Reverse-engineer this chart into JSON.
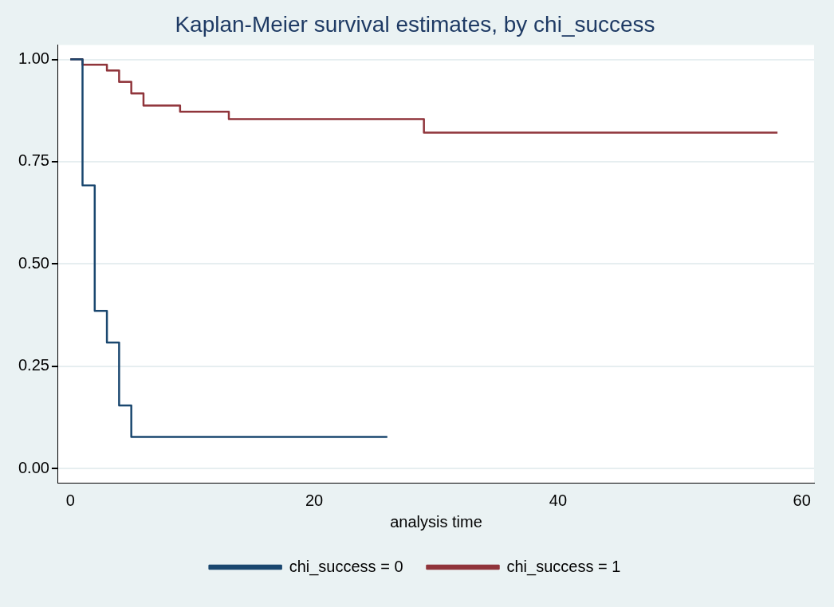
{
  "chart_data": {
    "type": "step",
    "title": "Kaplan-Meier survival estimates, by chi_success",
    "xlabel": "analysis time",
    "xlim": [
      -1,
      61
    ],
    "xticks": [
      0,
      20,
      40,
      60
    ],
    "ylim": [
      -0.035,
      1.035
    ],
    "yticks": [
      {
        "value": 0,
        "label": "0.00"
      },
      {
        "value": 0.25,
        "label": "0.25"
      },
      {
        "value": 0.5,
        "label": "0.50"
      },
      {
        "value": 0.75,
        "label": "0.75"
      },
      {
        "value": 1,
        "label": "1.00"
      }
    ],
    "grid": "y",
    "legend": "bottom",
    "marker": "none",
    "series": [
      {
        "name": "chi_success = 0",
        "color": "#1a476f",
        "x": [
          0,
          1,
          2,
          3,
          4,
          5,
          26
        ],
        "values": [
          1,
          0.692,
          0.385,
          0.308,
          0.154,
          0.077,
          0.077
        ]
      },
      {
        "name": "chi_success = 1",
        "color": "#90353b",
        "x": [
          0,
          1,
          3,
          4,
          5,
          6,
          9,
          13,
          29,
          58
        ],
        "values": [
          1,
          0.987,
          0.973,
          0.945,
          0.917,
          0.887,
          0.872,
          0.854,
          0.821,
          0.821
        ]
      }
    ]
  }
}
